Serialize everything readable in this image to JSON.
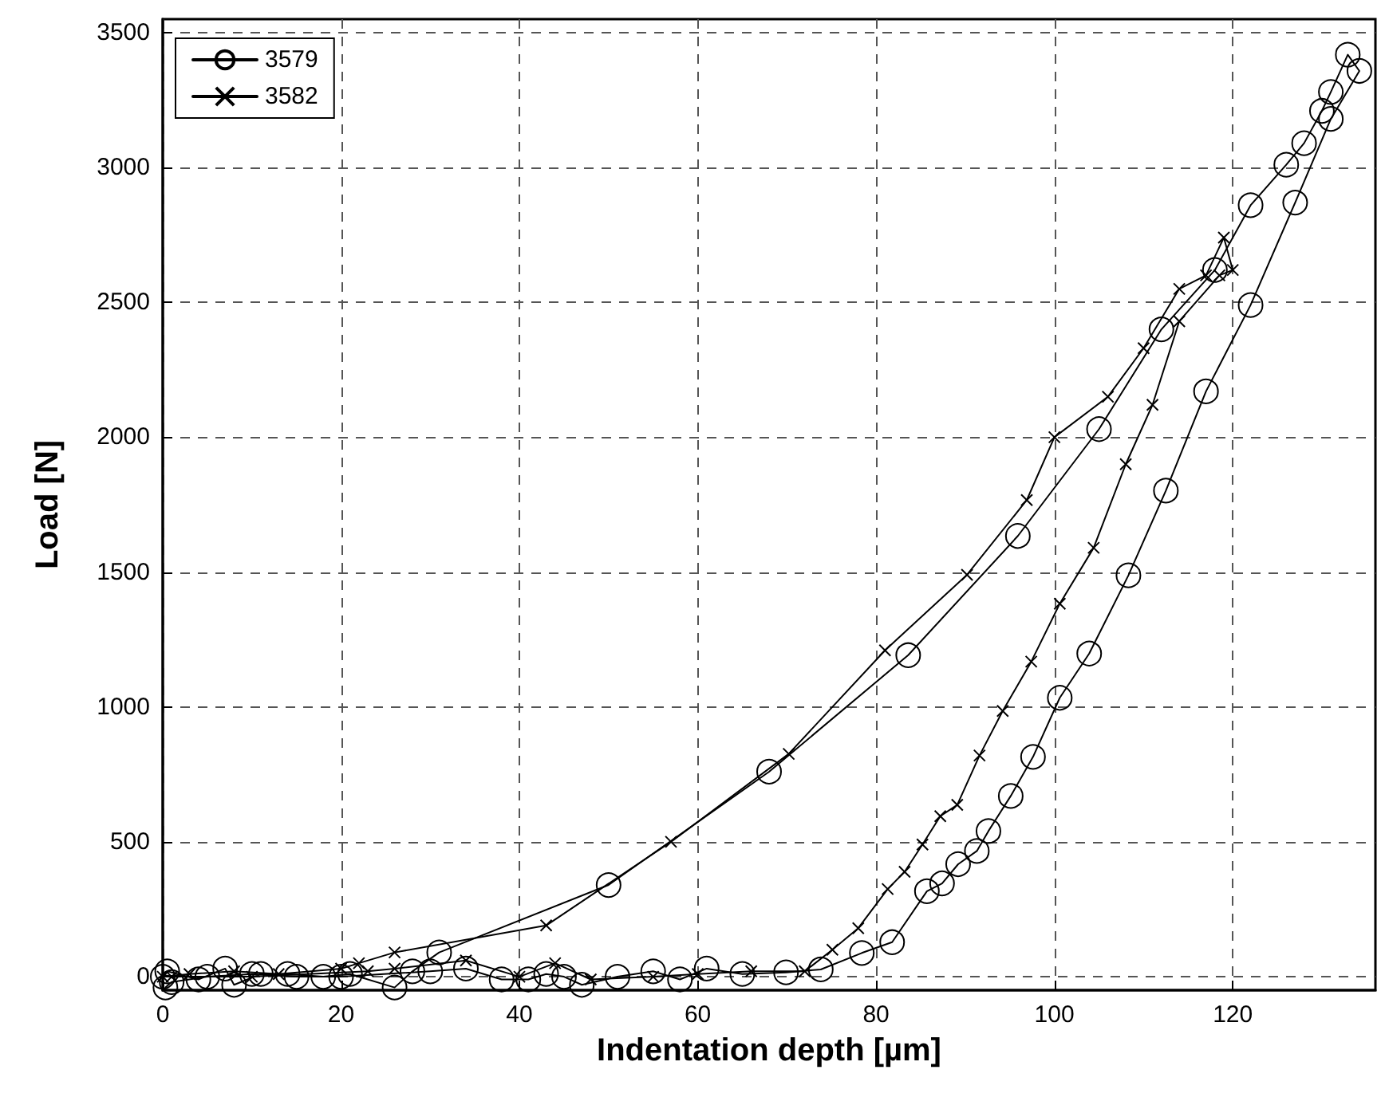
{
  "chart_data": {
    "type": "line",
    "xlabel": "Indentation depth [µm]",
    "ylabel": "Load [N]",
    "xlim": [
      0,
      136
    ],
    "xticks": [
      0,
      20,
      40,
      60,
      80,
      100,
      120
    ],
    "ylim": [
      -50,
      3550
    ],
    "yticks": [
      0,
      500,
      1000,
      1500,
      2000,
      2500,
      3000,
      3500
    ],
    "grid": true,
    "legend": "top left",
    "line_style": "solid",
    "series": [
      {
        "name": "3579",
        "color": "#000000",
        "marker": "circle",
        "x": [
          0,
          0.5,
          4,
          7,
          8,
          11,
          14,
          18,
          21,
          26,
          28,
          31,
          50,
          68,
          83.6,
          95.9,
          105,
          112,
          118,
          122,
          126,
          128,
          130,
          131,
          132.9,
          134.2,
          131,
          127,
          122,
          117,
          112.5,
          108.3,
          103.9,
          100.6,
          97.6,
          95.1,
          92.6,
          91.3,
          89.2,
          87.4,
          85.7,
          81.8,
          78.4,
          73.8,
          69.9,
          65,
          61,
          58,
          55,
          51,
          47,
          45,
          43,
          41,
          38,
          34,
          30,
          20,
          15,
          10,
          5,
          1,
          0.3
        ],
        "values": [
          0,
          20,
          -10,
          30,
          -30,
          10,
          10,
          0,
          10,
          -40,
          20,
          90,
          340,
          760,
          1192,
          1634,
          2030,
          2400,
          2620,
          2860,
          3010,
          3090,
          3210,
          3280,
          3418,
          3358,
          3180,
          2870,
          2490,
          2170,
          1802,
          1488,
          1198,
          1034,
          815,
          670,
          540,
          466,
          417,
          346,
          317,
          128,
          88,
          27,
          16,
          10,
          30,
          -10,
          20,
          0,
          -30,
          0,
          10,
          -10,
          -10,
          30,
          20,
          0,
          0,
          10,
          0,
          -20,
          -40
        ]
      },
      {
        "name": "3582",
        "color": "#000000",
        "marker": "cross",
        "x": [
          0,
          3,
          8,
          13,
          20,
          22,
          26,
          43,
          57,
          70.2,
          81,
          90.2,
          96.9,
          100,
          106,
          110,
          114,
          117,
          119,
          120,
          118.5,
          114,
          111,
          108,
          104.4,
          100.6,
          97.4,
          94.2,
          91.6,
          89.1,
          87.2,
          85.2,
          83.2,
          81.3,
          78,
          75.1,
          72,
          66,
          60,
          55,
          48,
          44,
          40,
          34,
          26,
          23,
          10,
          1
        ],
        "values": [
          0,
          10,
          20,
          10,
          30,
          50,
          90,
          190,
          500,
          826,
          1210,
          1490,
          1767,
          2000,
          2150,
          2330,
          2550,
          2600,
          2740,
          2620,
          2600,
          2430,
          2120,
          1900,
          1590,
          1383,
          1168,
          985,
          820,
          637,
          595,
          490,
          389,
          325,
          180,
          100,
          20,
          20,
          10,
          0,
          -10,
          50,
          0,
          60,
          30,
          20,
          0,
          0
        ]
      }
    ]
  }
}
